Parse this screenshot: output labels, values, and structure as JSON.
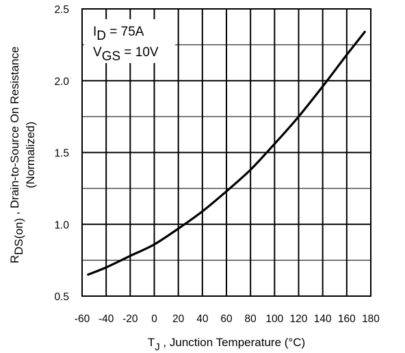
{
  "chart_data": {
    "type": "line",
    "xlabel": {
      "main": "T",
      "sub": "J",
      "rest": " , Junction Temperature (°C)"
    },
    "ylabel": {
      "main": "R",
      "sub": "DS(on)",
      "rest": " , Drain-to-Source On Resistance",
      "line2": "(Normalized)"
    },
    "xlim": [
      -60,
      180
    ],
    "ylim": [
      0.5,
      2.5
    ],
    "xticks": [
      "-60",
      "-40",
      "-20",
      "0",
      "20",
      "40",
      "60",
      "80",
      "100",
      "120",
      "140",
      "160",
      "180"
    ],
    "yticks": [
      "0.5",
      "1.0",
      "1.5",
      "2.0",
      "2.5"
    ],
    "grid": true,
    "annotations": [
      {
        "main": "I",
        "sub": "D",
        "rest": " = 75A"
      },
      {
        "main": "V",
        "sub": "GS",
        "rest": " = 10V"
      }
    ],
    "series": [
      {
        "x": [
          -55,
          -40,
          -20,
          0,
          20,
          40,
          60,
          80,
          100,
          120,
          140,
          160,
          175
        ],
        "y": [
          0.65,
          0.7,
          0.78,
          0.86,
          0.97,
          1.09,
          1.23,
          1.38,
          1.56,
          1.75,
          1.96,
          2.18,
          2.34
        ]
      }
    ]
  }
}
